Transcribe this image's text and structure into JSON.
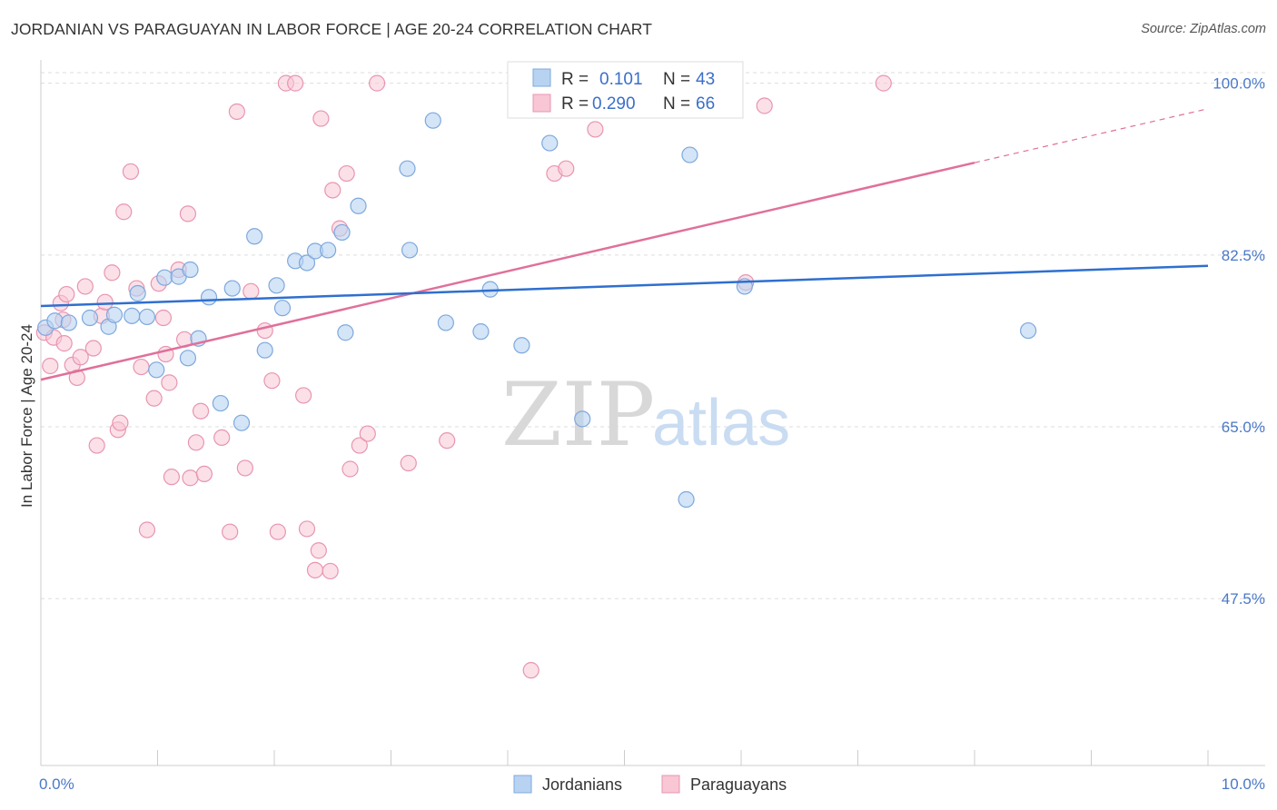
{
  "title": "JORDANIAN VS PARAGUAYAN IN LABOR FORCE | AGE 20-24 CORRELATION CHART",
  "source": "Source: ZipAtlas.com",
  "watermark": {
    "zip": "ZIP",
    "atlas": "atlas"
  },
  "legend": {
    "rows": [
      {
        "r_label": "R =",
        "r_value": "0.101",
        "n_label": "N =",
        "n_value": "43"
      },
      {
        "r_label": "R =",
        "r_value": "0.290",
        "n_label": "N =",
        "n_value": "66"
      }
    ]
  },
  "colors": {
    "blue_fill": "#b8d3f2",
    "blue_stroke": "#7ea8dd",
    "blue_line": "#2f6fcf",
    "pink_fill": "#f8c6d5",
    "pink_stroke": "#e895b0",
    "pink_line": "#e0709a",
    "tick_label": "#4a78c8",
    "grid": "#dddddd"
  },
  "chart_data": {
    "type": "scatter",
    "title": "JORDANIAN VS PARAGUAYAN IN LABOR FORCE | AGE 20-24 CORRELATION CHART",
    "xlabel": "",
    "ylabel": "In Labor Force | Age 20-24",
    "xlim": [
      0,
      10
    ],
    "ylim": [
      30.5,
      102
    ],
    "x_tick_labels": [
      "0.0%",
      "10.0%"
    ],
    "y_ticks": [
      47.5,
      65.0,
      82.5,
      100.0
    ],
    "y_tick_labels": [
      "47.5%",
      "65.0%",
      "82.5%",
      "100.0%"
    ],
    "grid": true,
    "legend_position": "top-center",
    "series": [
      {
        "name": "Jordanians",
        "r": 0.101,
        "n": 43,
        "trend": {
          "x": [
            0,
            10
          ],
          "y": [
            77.3,
            81.4
          ]
        },
        "points": [
          [
            0.04,
            75.1
          ],
          [
            0.12,
            75.8
          ],
          [
            0.24,
            75.6
          ],
          [
            0.42,
            76.1
          ],
          [
            0.58,
            75.2
          ],
          [
            0.63,
            76.4
          ],
          [
            0.78,
            76.3
          ],
          [
            0.83,
            78.6
          ],
          [
            0.91,
            76.2
          ],
          [
            0.99,
            70.8
          ],
          [
            1.06,
            80.2
          ],
          [
            1.18,
            80.3
          ],
          [
            1.26,
            72.0
          ],
          [
            1.28,
            81.0
          ],
          [
            1.35,
            74.0
          ],
          [
            1.44,
            78.2
          ],
          [
            1.54,
            67.4
          ],
          [
            1.64,
            79.1
          ],
          [
            1.72,
            65.4
          ],
          [
            1.83,
            84.4
          ],
          [
            1.92,
            72.8
          ],
          [
            2.02,
            79.4
          ],
          [
            2.07,
            77.1
          ],
          [
            2.18,
            81.9
          ],
          [
            2.28,
            81.7
          ],
          [
            2.35,
            82.9
          ],
          [
            2.46,
            83.0
          ],
          [
            2.58,
            84.8
          ],
          [
            2.61,
            74.6
          ],
          [
            2.72,
            87.5
          ],
          [
            3.14,
            91.3
          ],
          [
            3.16,
            83.0
          ],
          [
            3.36,
            96.2
          ],
          [
            3.47,
            75.6
          ],
          [
            3.77,
            74.7
          ],
          [
            3.85,
            79.0
          ],
          [
            4.12,
            73.3
          ],
          [
            4.36,
            93.9
          ],
          [
            4.64,
            65.8
          ],
          [
            5.53,
            57.6
          ],
          [
            5.56,
            92.7
          ],
          [
            6.03,
            79.3
          ],
          [
            8.46,
            74.8
          ]
        ]
      },
      {
        "name": "Paraguayans",
        "r": 0.29,
        "n": 66,
        "trend": {
          "x": [
            0,
            8.0
          ],
          "y": [
            69.8,
            91.9
          ]
        },
        "trend_dashed": {
          "x": [
            8.0,
            10
          ],
          "y": [
            91.9,
            97.4
          ]
        },
        "points": [
          [
            0.03,
            74.6
          ],
          [
            0.08,
            71.2
          ],
          [
            0.11,
            74.1
          ],
          [
            0.17,
            77.6
          ],
          [
            0.19,
            75.9
          ],
          [
            0.2,
            73.5
          ],
          [
            0.22,
            78.5
          ],
          [
            0.27,
            71.3
          ],
          [
            0.31,
            70.0
          ],
          [
            0.34,
            72.1
          ],
          [
            0.38,
            79.3
          ],
          [
            0.45,
            73.0
          ],
          [
            0.48,
            63.1
          ],
          [
            0.52,
            76.3
          ],
          [
            0.55,
            77.7
          ],
          [
            0.61,
            80.7
          ],
          [
            0.66,
            64.7
          ],
          [
            0.68,
            65.4
          ],
          [
            0.71,
            86.9
          ],
          [
            0.77,
            91.0
          ],
          [
            0.82,
            79.1
          ],
          [
            0.86,
            71.1
          ],
          [
            0.91,
            54.5
          ],
          [
            0.97,
            67.9
          ],
          [
            1.01,
            79.6
          ],
          [
            1.05,
            76.1
          ],
          [
            1.07,
            72.4
          ],
          [
            1.1,
            69.5
          ],
          [
            1.12,
            59.9
          ],
          [
            1.18,
            81.0
          ],
          [
            1.23,
            73.9
          ],
          [
            1.26,
            86.7
          ],
          [
            1.28,
            59.8
          ],
          [
            1.33,
            63.4
          ],
          [
            1.37,
            66.6
          ],
          [
            1.4,
            60.2
          ],
          [
            1.55,
            63.9
          ],
          [
            1.62,
            54.3
          ],
          [
            1.68,
            97.1
          ],
          [
            1.75,
            60.8
          ],
          [
            1.8,
            78.8
          ],
          [
            1.92,
            74.8
          ],
          [
            1.98,
            69.7
          ],
          [
            2.03,
            54.3
          ],
          [
            2.1,
            100.0
          ],
          [
            2.18,
            100.0
          ],
          [
            2.25,
            68.2
          ],
          [
            2.28,
            54.6
          ],
          [
            2.35,
            50.4
          ],
          [
            2.38,
            52.4
          ],
          [
            2.4,
            96.4
          ],
          [
            2.48,
            50.3
          ],
          [
            2.5,
            89.1
          ],
          [
            2.56,
            85.2
          ],
          [
            2.62,
            90.8
          ],
          [
            2.65,
            60.7
          ],
          [
            2.73,
            63.1
          ],
          [
            2.8,
            64.3
          ],
          [
            2.88,
            100.0
          ],
          [
            3.15,
            61.3
          ],
          [
            3.48,
            63.6
          ],
          [
            4.2,
            40.2
          ],
          [
            4.4,
            90.8
          ],
          [
            4.5,
            91.3
          ],
          [
            4.75,
            95.3
          ],
          [
            6.04,
            79.7
          ],
          [
            6.2,
            97.7
          ],
          [
            7.22,
            100.0
          ]
        ]
      }
    ]
  },
  "bottom_legend": [
    "Jordanians",
    "Paraguayans"
  ]
}
